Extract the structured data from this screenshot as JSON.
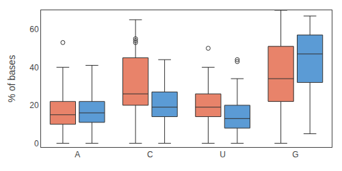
{
  "chart_data": {
    "type": "box",
    "ylabel": "% of bases",
    "categories": [
      "A",
      "C",
      "U",
      "G"
    ],
    "series": [
      {
        "color": "#E8836A",
        "values": [
          {
            "whislo": 0,
            "q1": 10,
            "med": 15,
            "q3": 22,
            "whishi": 40,
            "fliers": [
              53
            ]
          },
          {
            "whislo": 0,
            "q1": 20,
            "med": 26,
            "q3": 45,
            "whishi": 65,
            "fliers": [
              53,
              54,
              55
            ]
          },
          {
            "whislo": 0,
            "q1": 14,
            "med": 19,
            "q3": 26,
            "whishi": 40,
            "fliers": [
              50
            ]
          },
          {
            "whislo": 0,
            "q1": 22,
            "med": 34,
            "q3": 51,
            "whishi": 70,
            "fliers": []
          }
        ]
      },
      {
        "color": "#5B9BD5",
        "values": [
          {
            "whislo": 0,
            "q1": 11,
            "med": 16,
            "q3": 22,
            "whishi": 41,
            "fliers": []
          },
          {
            "whislo": 0,
            "q1": 14,
            "med": 19,
            "q3": 27,
            "whishi": 44,
            "fliers": []
          },
          {
            "whislo": 0,
            "q1": 8,
            "med": 13,
            "q3": 20,
            "whishi": 34,
            "fliers": [
              43,
              44
            ]
          },
          {
            "whislo": 5,
            "q1": 32,
            "med": 47,
            "q3": 57,
            "whishi": 67,
            "fliers": []
          }
        ]
      }
    ],
    "ylim": [
      -2,
      70
    ],
    "yticks": [
      0,
      20,
      40,
      60
    ],
    "grid": false
  }
}
